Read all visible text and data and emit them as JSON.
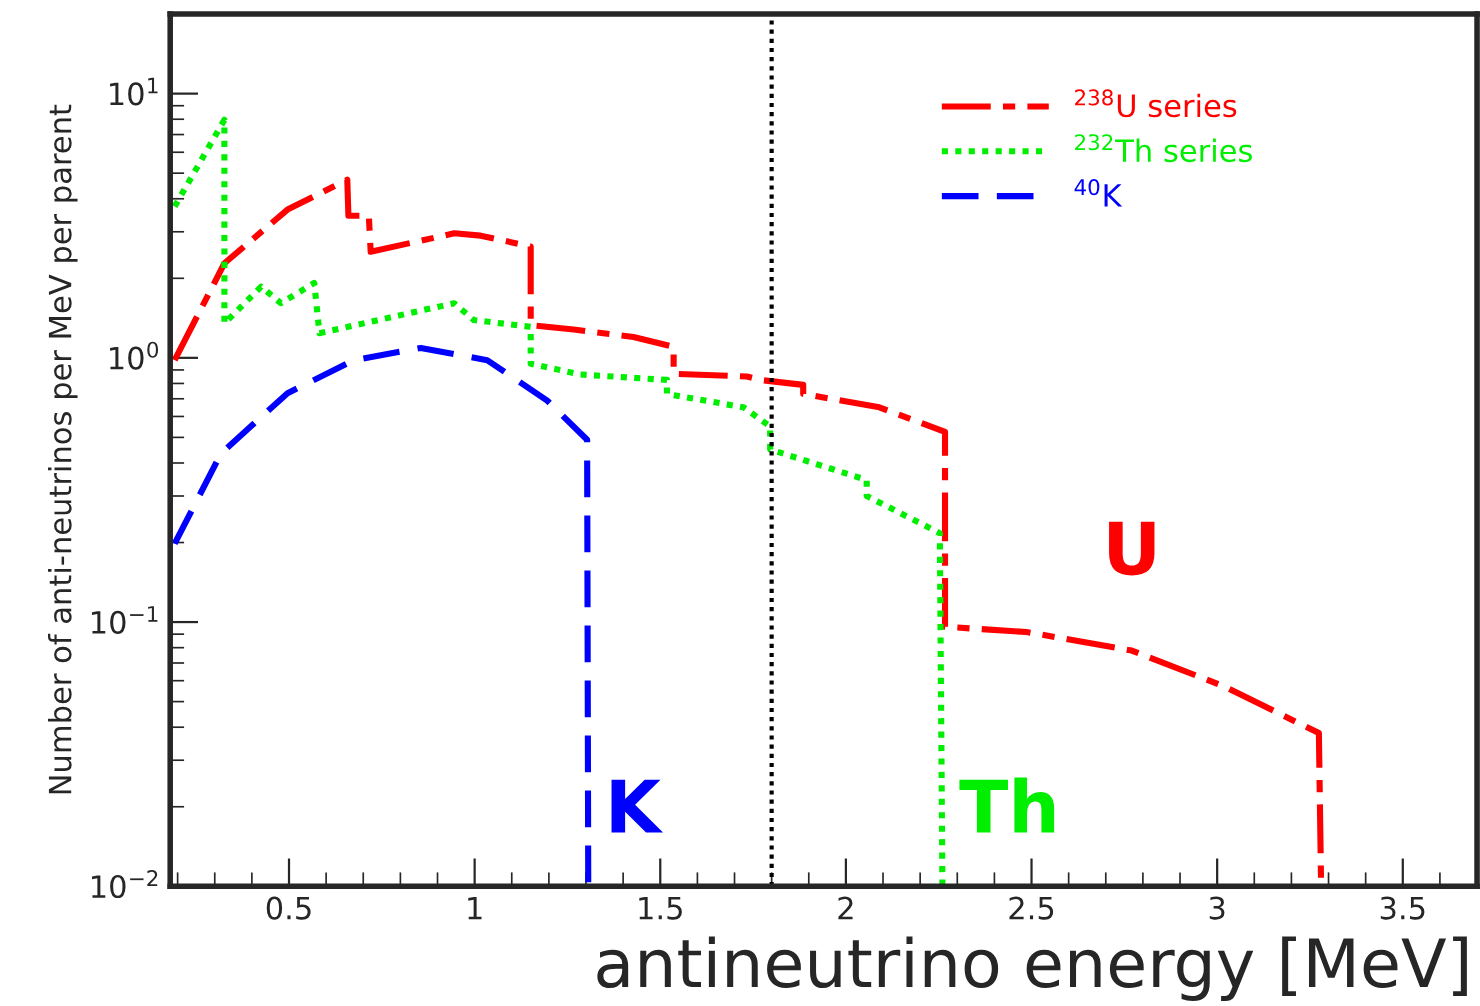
{
  "chart_data": {
    "type": "line",
    "xlabel": "antineutrino energy [MeV]",
    "ylabel": "Number of anti-neutrinos per MeV per parent",
    "log": "y",
    "xlim": [
      0.18,
      3.7
    ],
    "ylim": [
      0.01,
      20
    ],
    "xticks": [
      0.5,
      1,
      1.5,
      2,
      2.5,
      3,
      3.5
    ],
    "yticks": [
      {
        "value": 0.01,
        "label": "10$^{−2}$"
      },
      {
        "value": 0.1,
        "label": "10$^{−1}$"
      },
      {
        "value": 1,
        "label": "10$^{0}$"
      },
      {
        "value": 10,
        "label": "10$^{1}$"
      }
    ],
    "grid": false,
    "legend": "top right",
    "series": [
      {
        "name": "$^{238}$U series",
        "color": "#ff0000",
        "line_style": "dashdot",
        "x": [
          0.192,
          0.326,
          0.496,
          0.657,
          0.66,
          0.715,
          0.72,
          0.945,
          1.016,
          1.151,
          1.151,
          1.267,
          1.428,
          1.536,
          1.536,
          1.733,
          1.769,
          1.885,
          1.885,
          2.09,
          2.267,
          2.267,
          2.486,
          2.77,
          3.02,
          3.274,
          3.28
        ],
        "values": [
          0.98,
          2.28,
          3.64,
          4.72,
          3.45,
          3.45,
          2.52,
          2.96,
          2.9,
          2.64,
          1.33,
          1.28,
          1.2,
          1.1,
          0.87,
          0.85,
          0.825,
          0.79,
          0.73,
          0.65,
          0.525,
          0.096,
          0.0917,
          0.078,
          0.057,
          0.038,
          0.01
        ]
      },
      {
        "name": "$^{232}$Th series",
        "color": "#00ee00",
        "line_style": "dotted",
        "x": [
          0.192,
          0.326,
          0.326,
          0.425,
          0.478,
          0.568,
          0.582,
          0.945,
          0.998,
          1.151,
          1.151,
          1.285,
          1.518,
          1.518,
          1.724,
          1.796,
          1.796,
          2.056,
          2.056,
          2.253,
          2.26
        ],
        "values": [
          3.74,
          7.96,
          1.35,
          1.86,
          1.61,
          1.92,
          1.24,
          1.61,
          1.39,
          1.31,
          0.95,
          0.865,
          0.825,
          0.73,
          0.65,
          0.55,
          0.45,
          0.345,
          0.3,
          0.217,
          0.01
        ]
      },
      {
        "name": "$^{40}$K",
        "color": "#0000ff",
        "line_style": "dashed",
        "x": [
          0.192,
          0.317,
          0.496,
          0.675,
          0.855,
          1.034,
          1.195,
          1.303,
          1.306
        ],
        "values": [
          0.198,
          0.435,
          0.735,
          0.98,
          1.09,
          0.98,
          0.69,
          0.49,
          0.01
        ]
      }
    ],
    "ref_lines": [
      {
        "axis": "x",
        "value": 1.8,
        "color": "#000000",
        "line_style": "dotted"
      }
    ],
    "annotations": [
      "U",
      "Th",
      "K"
    ]
  }
}
